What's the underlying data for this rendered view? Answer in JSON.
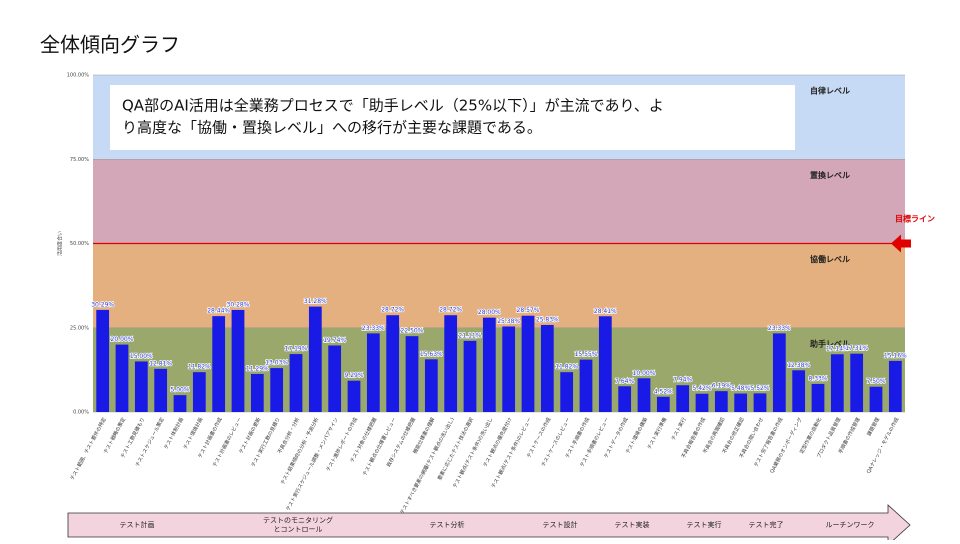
{
  "page_title": "全体傾向グラフ",
  "chart_data": {
    "type": "bar",
    "y_label": "活用度合い",
    "note": [
      "QA部のAI活用は全業務プロセスで「助手レベル（25%以下）」が主流であり、よ",
      "り高度な「協働・置換レベル」への移行が主要な課題である。"
    ],
    "categories": [
      "テスト範囲、テスト要件の特定",
      "テスト戦略の策定",
      "テスト工数見積もり",
      "テストスケジュール策定",
      "テスト体制計画",
      "テスト環境計画",
      "テスト計画書の作成",
      "テスト計画書のレビュー",
      "テスト計画の更新",
      "テスト実行工数の見積り",
      "不具合分析・分析",
      "テスト結果傾向の分析・予測分析",
      "テスト実行スケジュール調整・メンバアサイン",
      "テスト進捗レポートの作成",
      "テスト対象の仕様把握",
      "テスト観点の仕様書レビュー",
      "既存システムの仕様把握",
      "機能仕様書の理解",
      "テストすべき要素の網羅(テスト観点の洗い出し)",
      "要素に応じたテスト技法の選択",
      "テスト観点(テスト条件)の洗い出し",
      "テスト観点の優先度付け",
      "テスト観点(テスト条件)のレビュー",
      "テストケースの作成",
      "テストケースのレビュー",
      "テスト手順書の作成",
      "テスト手順書のレビュー",
      "テストデータの作成",
      "テスト環境の構築",
      "テスト実行準備",
      "テスト実行",
      "不具合報告書の作成",
      "不具合の再現確認",
      "不具合の修正確認",
      "不具合の問い合わせ",
      "テスト完了報告書の作成",
      "QA業務のオンボーディング",
      "定型作業の自動化",
      "プロダクト品質管理",
      "手順書の作成管理",
      "課題管理",
      "QAナレッジ・モデルの作成"
    ],
    "values": [
      30.29,
      20.0,
      15.0,
      12.81,
      5.0,
      11.82,
      28.44,
      30.28,
      11.29,
      13.03,
      17.19,
      31.28,
      19.74,
      9.29,
      23.33,
      28.72,
      22.5,
      15.63,
      28.72,
      21.11,
      28.0,
      25.38,
      28.57,
      25.83,
      11.82,
      15.55,
      28.41,
      7.64,
      10.0,
      4.52,
      7.94,
      5.42,
      6.19,
      5.48,
      5.52,
      23.33,
      12.38,
      8.33,
      17.14,
      17.31,
      7.5,
      15.16
    ],
    "value_labels": [
      "30.29%",
      "20.00%",
      "15.00%",
      "12.81%",
      "5.00%",
      "11.82%",
      "28.44%",
      "30.28%",
      "11.29%",
      "13.03%",
      "17.19%",
      "31.28%",
      "19.74%",
      "9.29%",
      "23.33%",
      "28.72%",
      "22.50%",
      "15.63%",
      "28.72%",
      "21.11%",
      "28.00%",
      "25.38%",
      "28.57%",
      "25.83%",
      "11.82%",
      "15.55%",
      "28.41%",
      "7.64%",
      "10.00%",
      "4.52%",
      "7.94%",
      "5.42%",
      "6.19%",
      "5.48%",
      "5.52%",
      "23.33%",
      "12.38%",
      "8.33%",
      "17.14%",
      "17.31%",
      "7.50%",
      "15.16%"
    ],
    "color": "#1a1ae6",
    "ylim": [
      0,
      100
    ],
    "yticks": [
      {
        "value": 0,
        "label": "0.00%"
      },
      {
        "value": 25,
        "label": "25.00%"
      },
      {
        "value": 50,
        "label": "50.00%"
      },
      {
        "value": 75,
        "label": "75.00%"
      },
      {
        "value": 100,
        "label": "100.00%"
      }
    ],
    "bands": [
      {
        "label": "助手レベル",
        "from": 0,
        "to": 25,
        "color": "#9aa96b"
      },
      {
        "label": "協働レベル",
        "from": 25,
        "to": 50,
        "color": "#e4b07f"
      },
      {
        "label": "置換レベル",
        "from": 50,
        "to": 75,
        "color": "#d3a6b8"
      },
      {
        "label": "自律レベル",
        "from": 75,
        "to": 100,
        "color": "#c7daf5"
      }
    ],
    "target": {
      "label": "目標ライン",
      "value": 50,
      "color": "#e00000"
    },
    "phases": [
      "テスト計画",
      "テストのモニタリング\nとコントロール",
      "テスト分析",
      "テスト設計",
      "テスト実装",
      "テスト実行",
      "テスト完了",
      "ルーチンワーク"
    ]
  }
}
